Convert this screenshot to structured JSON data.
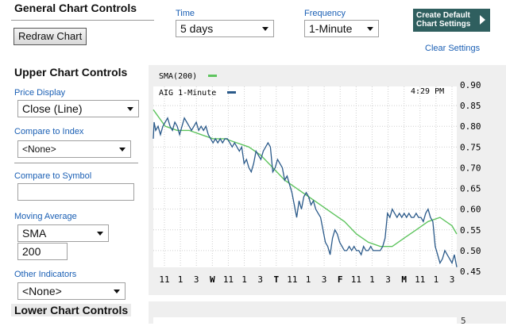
{
  "general": {
    "title": "General Chart Controls",
    "redraw_label": "Redraw Chart",
    "time_label": "Time",
    "time_value": "5 days",
    "frequency_label": "Frequency",
    "frequency_value": "1-Minute",
    "default_settings_line1": "Create Default",
    "default_settings_line2": "Chart Settings",
    "clear_settings": "Clear Settings"
  },
  "upper": {
    "title": "Upper Chart Controls",
    "price_display_label": "Price Display",
    "price_display_value": "Close (Line)",
    "compare_index_label": "Compare to Index",
    "compare_index_value": "<None>",
    "compare_symbol_label": "Compare to Symbol",
    "compare_symbol_value": "",
    "moving_average_label": "Moving Average",
    "moving_average_type": "SMA",
    "moving_average_period": "200",
    "other_indicators_label": "Other Indicators",
    "other_indicators_value": "<None>"
  },
  "lower": {
    "title": "Lower Chart Controls",
    "first_tick": "5"
  },
  "chart_data": {
    "type": "line",
    "legend": [
      "SMA(200)",
      "AIG 1-Minute"
    ],
    "time_label": "4:29 PM",
    "ylim": [
      0.45,
      0.9
    ],
    "yticks": [
      "0.90",
      "0.85",
      "0.80",
      "0.75",
      "0.70",
      "0.65",
      "0.60",
      "0.55",
      "0.50",
      "0.45"
    ],
    "xticks": [
      "11",
      "1",
      "3",
      "W",
      "11",
      "1",
      "3",
      "T",
      "11",
      "1",
      "3",
      "F",
      "11",
      "1",
      "3",
      "M",
      "11",
      "1",
      "3"
    ],
    "colors": {
      "price": "#2b5a8a",
      "sma": "#5ec45e"
    },
    "series": [
      {
        "name": "AIG 1-Minute",
        "x": [
          0,
          1,
          3,
          6,
          9,
          12,
          15,
          18,
          21,
          24,
          27,
          30,
          33,
          36,
          39,
          42,
          45,
          48,
          51,
          54,
          57,
          60,
          63,
          66,
          69,
          72,
          75,
          78,
          81,
          84,
          87,
          90,
          93,
          96,
          99,
          102,
          105,
          108,
          111,
          114,
          117,
          120,
          123,
          126,
          129,
          132,
          135,
          138,
          141,
          144,
          147,
          150,
          153,
          156,
          159,
          162,
          165,
          168,
          171,
          174,
          177,
          180,
          183,
          186,
          189,
          192,
          195,
          198,
          201,
          204,
          207,
          210,
          213,
          216,
          219,
          222,
          225,
          228,
          231,
          234,
          237,
          240,
          243,
          246,
          249,
          252,
          255,
          258,
          261,
          264,
          267,
          270,
          273,
          276,
          279,
          282,
          285,
          288,
          291,
          294,
          297,
          300,
          303,
          306,
          309,
          312,
          315,
          318,
          321,
          324,
          327,
          330,
          333,
          336,
          339,
          342,
          345,
          348,
          351,
          354,
          357,
          360,
          363,
          366,
          369,
          372,
          375,
          378,
          381
        ],
        "y": [
          0.77,
          0.81,
          0.79,
          0.8,
          0.78,
          0.8,
          0.81,
          0.82,
          0.8,
          0.79,
          0.81,
          0.8,
          0.78,
          0.8,
          0.82,
          0.81,
          0.8,
          0.79,
          0.8,
          0.81,
          0.79,
          0.8,
          0.79,
          0.8,
          0.78,
          0.77,
          0.76,
          0.77,
          0.76,
          0.77,
          0.76,
          0.77,
          0.77,
          0.76,
          0.75,
          0.76,
          0.75,
          0.74,
          0.75,
          0.71,
          0.72,
          0.7,
          0.69,
          0.71,
          0.74,
          0.73,
          0.72,
          0.74,
          0.75,
          0.76,
          0.75,
          0.69,
          0.7,
          0.72,
          0.71,
          0.7,
          0.67,
          0.68,
          0.66,
          0.64,
          0.61,
          0.58,
          0.62,
          0.6,
          0.63,
          0.64,
          0.63,
          0.61,
          0.62,
          0.6,
          0.59,
          0.58,
          0.55,
          0.52,
          0.51,
          0.49,
          0.53,
          0.55,
          0.54,
          0.52,
          0.51,
          0.5,
          0.5,
          0.51,
          0.5,
          0.51,
          0.5,
          0.5,
          0.49,
          0.51,
          0.5,
          0.5,
          0.51,
          0.5,
          0.5,
          0.5,
          0.5,
          0.51,
          0.53,
          0.59,
          0.58,
          0.6,
          0.59,
          0.58,
          0.59,
          0.58,
          0.59,
          0.58,
          0.59,
          0.58,
          0.58,
          0.59,
          0.58,
          0.58,
          0.57,
          0.59,
          0.6,
          0.58,
          0.57,
          0.51,
          0.49,
          0.47,
          0.48,
          0.5,
          0.49,
          0.48,
          0.47,
          0.49,
          0.46
        ]
      },
      {
        "name": "SMA(200)",
        "x": [
          0,
          15,
          30,
          45,
          60,
          75,
          90,
          105,
          120,
          135,
          150,
          165,
          180,
          195,
          210,
          225,
          240,
          255,
          270,
          285,
          300,
          315,
          330,
          345,
          360,
          375,
          381
        ],
        "y": [
          0.84,
          0.8,
          0.79,
          0.79,
          0.78,
          0.77,
          0.77,
          0.76,
          0.75,
          0.73,
          0.7,
          0.67,
          0.65,
          0.63,
          0.61,
          0.59,
          0.57,
          0.54,
          0.52,
          0.51,
          0.51,
          0.53,
          0.55,
          0.57,
          0.58,
          0.56,
          0.54
        ]
      }
    ]
  }
}
